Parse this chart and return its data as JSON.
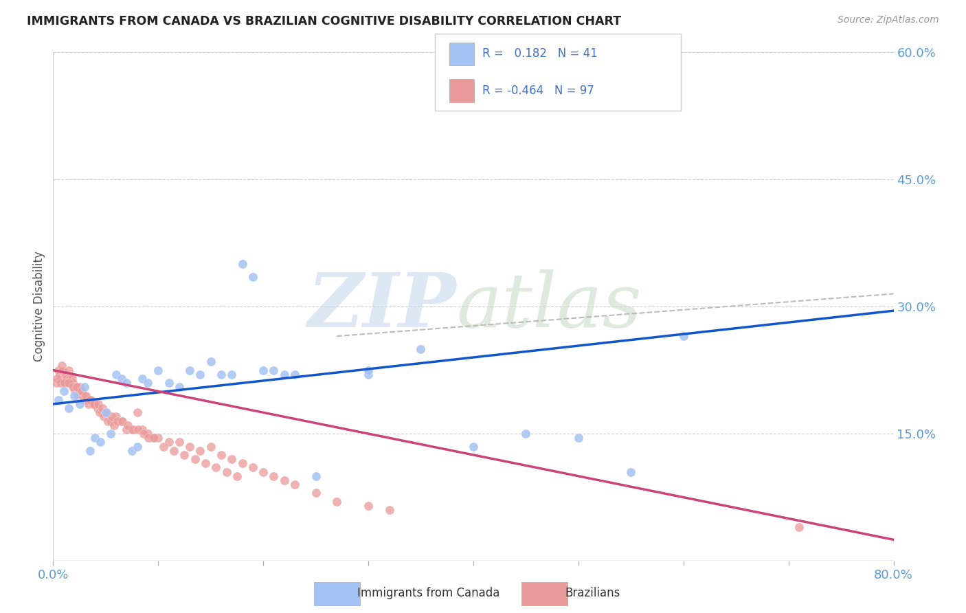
{
  "title": "IMMIGRANTS FROM CANADA VS BRAZILIAN COGNITIVE DISABILITY CORRELATION CHART",
  "source": "Source: ZipAtlas.com",
  "ylabel": "Cognitive Disability",
  "xlim": [
    0.0,
    0.8
  ],
  "ylim": [
    0.0,
    0.6
  ],
  "color_canada": "#a4c2f4",
  "color_brazil": "#ea9999",
  "color_canada_line": "#1155cc",
  "color_brazil_line": "#cc4477",
  "color_dashed_line": "#bbbbbb",
  "canada_line_x0": 0.0,
  "canada_line_y0": 0.185,
  "canada_line_x1": 0.8,
  "canada_line_y1": 0.295,
  "brazil_line_x0": 0.0,
  "brazil_line_y0": 0.225,
  "brazil_line_x1": 0.8,
  "brazil_line_y1": 0.025,
  "dashed_line_x0": 0.27,
  "dashed_line_y0": 0.265,
  "dashed_line_x1": 0.8,
  "dashed_line_y1": 0.315,
  "canada_scatter_x": [
    0.005,
    0.01,
    0.015,
    0.02,
    0.025,
    0.03,
    0.035,
    0.04,
    0.045,
    0.05,
    0.055,
    0.06,
    0.065,
    0.07,
    0.075,
    0.08,
    0.085,
    0.09,
    0.1,
    0.11,
    0.12,
    0.13,
    0.14,
    0.15,
    0.16,
    0.17,
    0.18,
    0.19,
    0.2,
    0.21,
    0.22,
    0.23,
    0.25,
    0.3,
    0.35,
    0.4,
    0.5,
    0.55,
    0.6,
    0.3,
    0.45
  ],
  "canada_scatter_y": [
    0.19,
    0.2,
    0.18,
    0.195,
    0.185,
    0.205,
    0.13,
    0.145,
    0.14,
    0.175,
    0.15,
    0.22,
    0.215,
    0.21,
    0.13,
    0.135,
    0.215,
    0.21,
    0.225,
    0.21,
    0.205,
    0.225,
    0.22,
    0.235,
    0.22,
    0.22,
    0.35,
    0.335,
    0.225,
    0.225,
    0.22,
    0.22,
    0.1,
    0.22,
    0.25,
    0.135,
    0.145,
    0.105,
    0.265,
    0.225,
    0.15
  ],
  "brazil_scatter_x": [
    0.003,
    0.005,
    0.006,
    0.007,
    0.008,
    0.009,
    0.01,
    0.011,
    0.012,
    0.013,
    0.014,
    0.015,
    0.016,
    0.017,
    0.018,
    0.019,
    0.02,
    0.021,
    0.022,
    0.023,
    0.024,
    0.025,
    0.026,
    0.027,
    0.028,
    0.029,
    0.03,
    0.032,
    0.034,
    0.036,
    0.038,
    0.04,
    0.042,
    0.044,
    0.046,
    0.048,
    0.05,
    0.052,
    0.055,
    0.058,
    0.06,
    0.065,
    0.07,
    0.075,
    0.08,
    0.085,
    0.09,
    0.095,
    0.1,
    0.11,
    0.12,
    0.13,
    0.14,
    0.15,
    0.16,
    0.17,
    0.18,
    0.19,
    0.2,
    0.21,
    0.22,
    0.23,
    0.25,
    0.27,
    0.3,
    0.32,
    0.004,
    0.007,
    0.011,
    0.015,
    0.019,
    0.023,
    0.027,
    0.031,
    0.035,
    0.039,
    0.043,
    0.047,
    0.051,
    0.056,
    0.061,
    0.066,
    0.071,
    0.076,
    0.081,
    0.086,
    0.091,
    0.096,
    0.105,
    0.115,
    0.125,
    0.135,
    0.145,
    0.155,
    0.165,
    0.175,
    0.71
  ],
  "brazil_scatter_y": [
    0.21,
    0.225,
    0.22,
    0.215,
    0.23,
    0.225,
    0.215,
    0.21,
    0.22,
    0.215,
    0.21,
    0.225,
    0.215,
    0.21,
    0.215,
    0.21,
    0.205,
    0.2,
    0.205,
    0.2,
    0.195,
    0.205,
    0.2,
    0.195,
    0.195,
    0.19,
    0.195,
    0.19,
    0.185,
    0.19,
    0.185,
    0.185,
    0.18,
    0.175,
    0.175,
    0.17,
    0.175,
    0.165,
    0.165,
    0.16,
    0.17,
    0.165,
    0.155,
    0.155,
    0.175,
    0.155,
    0.15,
    0.145,
    0.145,
    0.14,
    0.14,
    0.135,
    0.13,
    0.135,
    0.125,
    0.12,
    0.115,
    0.11,
    0.105,
    0.1,
    0.095,
    0.09,
    0.08,
    0.07,
    0.065,
    0.06,
    0.215,
    0.21,
    0.21,
    0.21,
    0.205,
    0.205,
    0.2,
    0.195,
    0.19,
    0.185,
    0.185,
    0.18,
    0.175,
    0.17,
    0.165,
    0.165,
    0.16,
    0.155,
    0.155,
    0.15,
    0.145,
    0.145,
    0.135,
    0.13,
    0.125,
    0.12,
    0.115,
    0.11,
    0.105,
    0.1,
    0.04
  ]
}
